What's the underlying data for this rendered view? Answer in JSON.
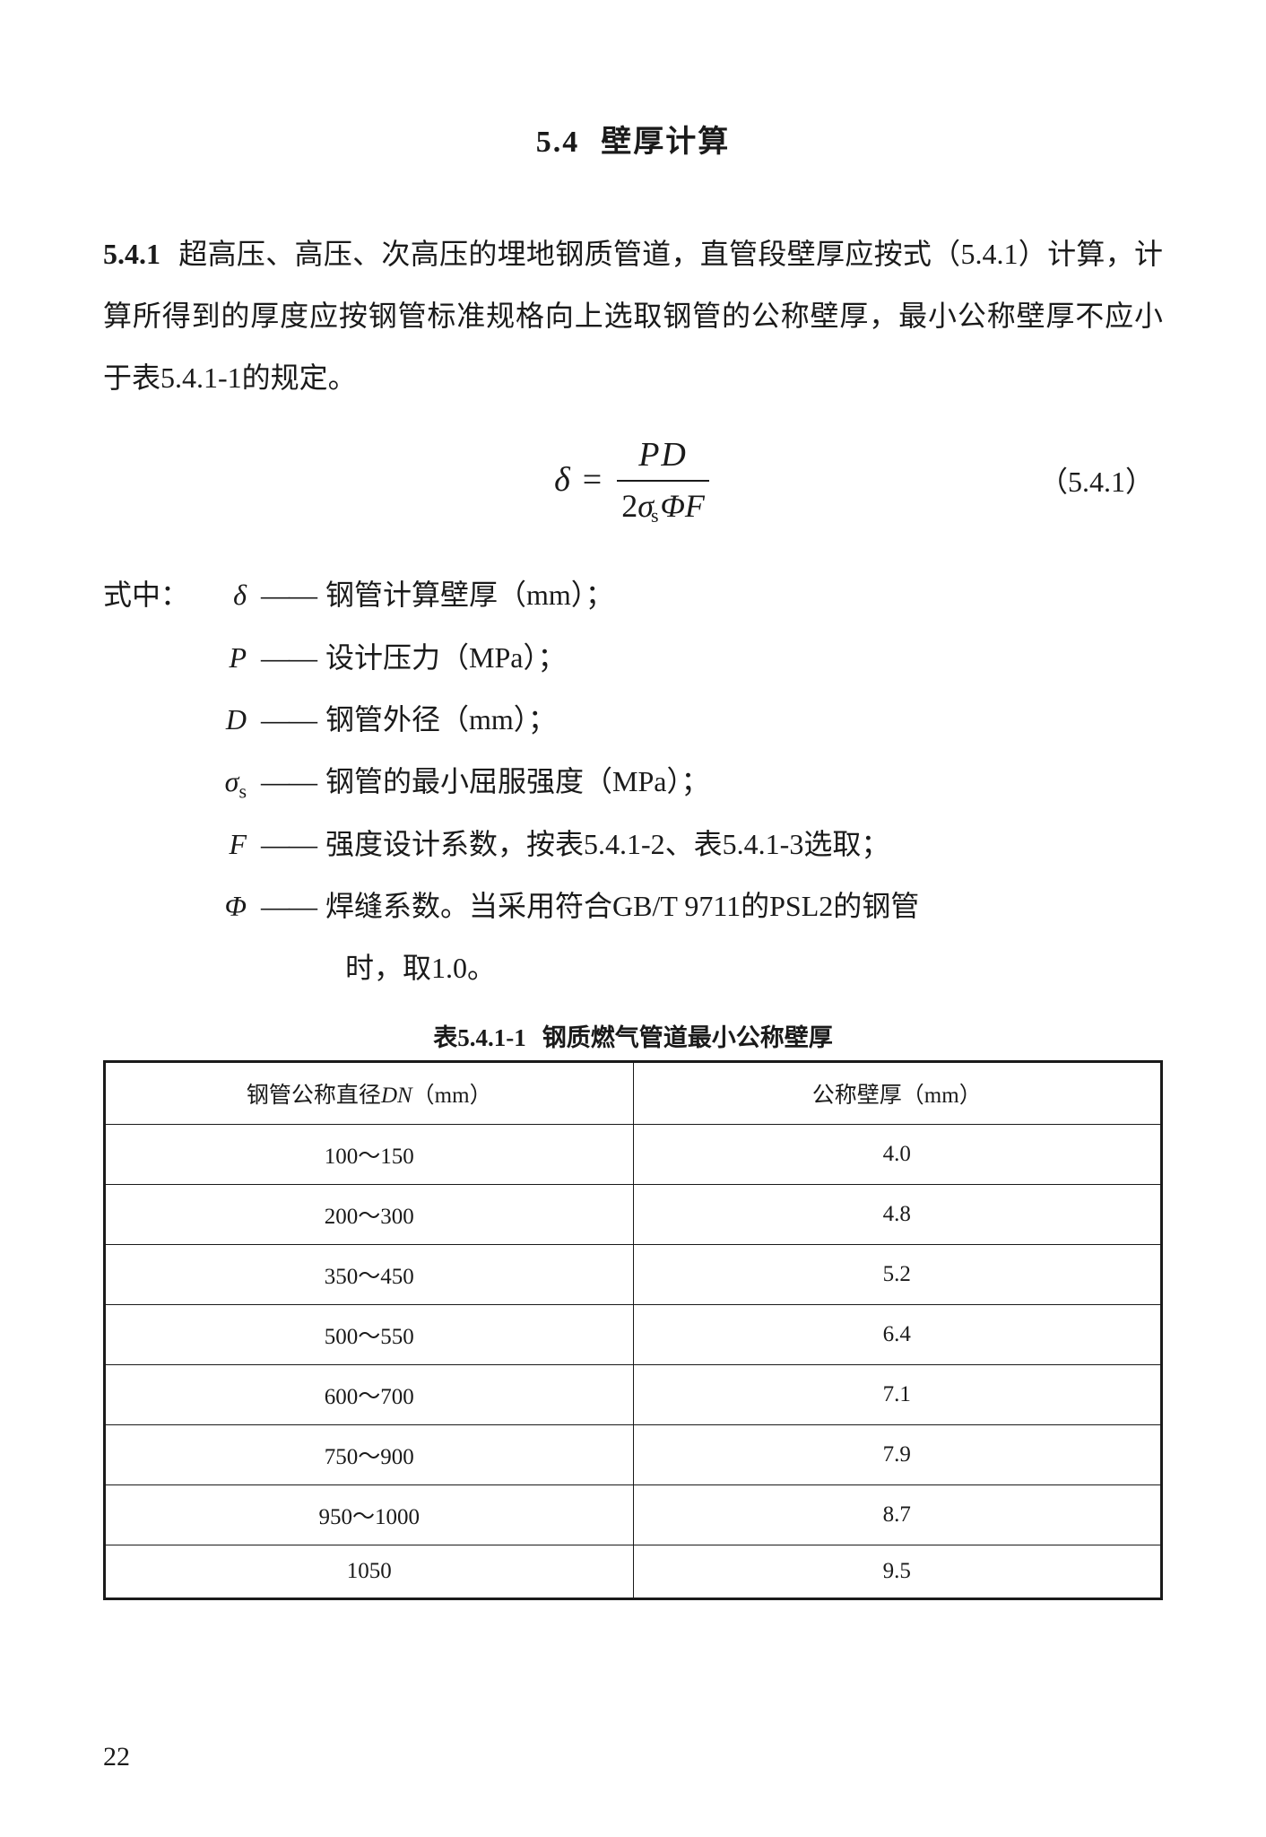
{
  "heading": {
    "number": "5.4",
    "title": "壁厚计算"
  },
  "clause": {
    "number": "5.4.1",
    "text": "超高压、高压、次高压的埋地钢质管道，直管段壁厚应按式（5.4.1）计算，计算所得到的厚度应按钢管标准规格向上选取钢管的公称壁厚，最小公称壁厚不应小于表5.4.1-1的规定。"
  },
  "formula": {
    "lhs": "δ",
    "equals": "=",
    "numerator": "PD",
    "denom_two": "2",
    "denom_sigma": "σ",
    "denom_sigma_sub": "s",
    "denom_phi": "Φ",
    "denom_F": "F",
    "ref": "（5.4.1）"
  },
  "definitions": {
    "lead": "式中：",
    "dash": "——",
    "items": [
      {
        "symbol": "δ",
        "sub": "",
        "text": "钢管计算壁厚（mm）；"
      },
      {
        "symbol": "P",
        "sub": "",
        "text": "设计压力（MPa）；"
      },
      {
        "symbol": "D",
        "sub": "",
        "text": "钢管外径（mm）；"
      },
      {
        "symbol": "σ",
        "sub": "s",
        "text": "钢管的最小屈服强度（MPa）；"
      },
      {
        "symbol": "F",
        "sub": "",
        "text": "强度设计系数，按表5.4.1-2、表5.4.1-3选取；"
      },
      {
        "symbol": "Φ",
        "sub": "",
        "text": "焊缝系数。当采用符合GB/T 9711的PSL2的钢管"
      }
    ],
    "cont": "时，取1.0。"
  },
  "table": {
    "caption_num": "表5.4.1-1",
    "caption_title": "钢质燃气管道最小公称壁厚",
    "header_col1_prefix": "钢管公称直径",
    "header_col1_dn": "DN",
    "header_col1_unit": "（mm）",
    "header_col2": "公称壁厚（mm）",
    "rows": [
      {
        "dn": "100～150",
        "t": "4.0"
      },
      {
        "dn": "200～300",
        "t": "4.8"
      },
      {
        "dn": "350～450",
        "t": "5.2"
      },
      {
        "dn": "500～550",
        "t": "6.4"
      },
      {
        "dn": "600～700",
        "t": "7.1"
      },
      {
        "dn": "750～900",
        "t": "7.9"
      },
      {
        "dn": "950～1000",
        "t": "8.7"
      },
      {
        "dn": "1050",
        "t": "9.5"
      }
    ]
  },
  "page_number": "22"
}
